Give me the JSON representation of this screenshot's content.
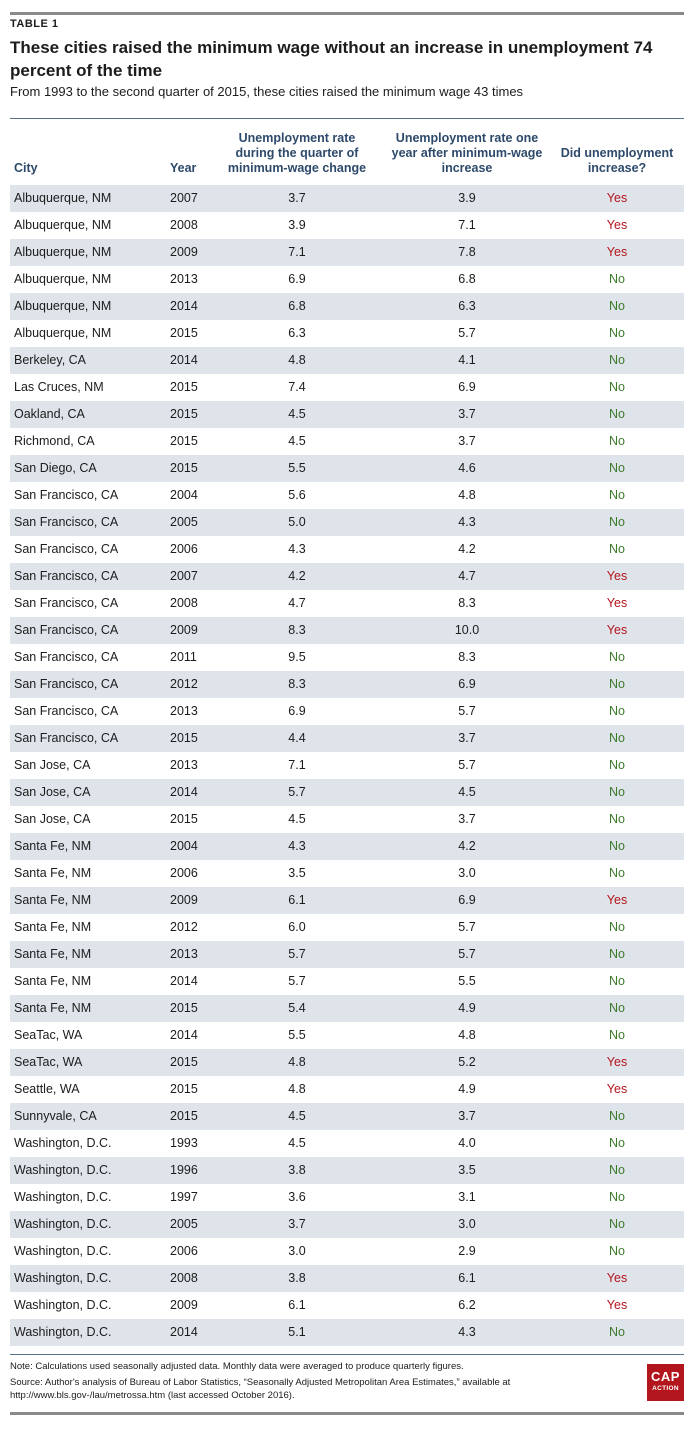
{
  "table_label": "TABLE 1",
  "title": "These cities raised the minimum wage without an increase in unemployment 74 percent of the time",
  "subtitle": "From 1993 to the second quarter of 2015, these cities raised the minimum wage 43 times",
  "headers": {
    "city": "City",
    "year": "Year",
    "during": "Unemployment rate during the quarter of minimum-wage change",
    "after": "Unemployment rate one year after minimum-wage increase",
    "did": "Did unemployment increase?"
  },
  "colors": {
    "yes": "#b3151c",
    "no": "#3c7a2c",
    "header_text": "#2e4a6b",
    "row_shade": "#dfe4ea"
  },
  "rows": [
    [
      "Albuquerque, NM",
      "2007",
      "3.7",
      "3.9",
      "Yes"
    ],
    [
      "Albuquerque, NM",
      "2008",
      "3.9",
      "7.1",
      "Yes"
    ],
    [
      "Albuquerque, NM",
      "2009",
      "7.1",
      "7.8",
      "Yes"
    ],
    [
      "Albuquerque, NM",
      "2013",
      "6.9",
      "6.8",
      "No"
    ],
    [
      "Albuquerque, NM",
      "2014",
      "6.8",
      "6.3",
      "No"
    ],
    [
      "Albuquerque, NM",
      "2015",
      "6.3",
      "5.7",
      "No"
    ],
    [
      "Berkeley, CA",
      "2014",
      "4.8",
      "4.1",
      "No"
    ],
    [
      "Las Cruces, NM",
      "2015",
      "7.4",
      "6.9",
      "No"
    ],
    [
      "Oakland, CA",
      "2015",
      "4.5",
      "3.7",
      "No"
    ],
    [
      "Richmond, CA",
      "2015",
      "4.5",
      "3.7",
      "No"
    ],
    [
      "San Diego, CA",
      "2015",
      "5.5",
      "4.6",
      "No"
    ],
    [
      "San Francisco, CA",
      "2004",
      "5.6",
      "4.8",
      "No"
    ],
    [
      "San Francisco, CA",
      "2005",
      "5.0",
      "4.3",
      "No"
    ],
    [
      "San Francisco, CA",
      "2006",
      "4.3",
      "4.2",
      "No"
    ],
    [
      "San Francisco, CA",
      "2007",
      "4.2",
      "4.7",
      "Yes"
    ],
    [
      "San Francisco, CA",
      "2008",
      "4.7",
      "8.3",
      "Yes"
    ],
    [
      "San Francisco, CA",
      "2009",
      "8.3",
      "10.0",
      "Yes"
    ],
    [
      "San Francisco, CA",
      "2011",
      "9.5",
      "8.3",
      "No"
    ],
    [
      "San Francisco, CA",
      "2012",
      "8.3",
      "6.9",
      "No"
    ],
    [
      "San Francisco, CA",
      "2013",
      "6.9",
      "5.7",
      "No"
    ],
    [
      "San Francisco, CA",
      "2015",
      "4.4",
      "3.7",
      "No"
    ],
    [
      "San Jose, CA",
      "2013",
      "7.1",
      "5.7",
      "No"
    ],
    [
      "San Jose, CA",
      "2014",
      "5.7",
      "4.5",
      "No"
    ],
    [
      "San Jose, CA",
      "2015",
      "4.5",
      "3.7",
      "No"
    ],
    [
      "Santa Fe, NM",
      "2004",
      "4.3",
      "4.2",
      "No"
    ],
    [
      "Santa Fe, NM",
      "2006",
      "3.5",
      "3.0",
      "No"
    ],
    [
      "Santa Fe, NM",
      "2009",
      "6.1",
      "6.9",
      "Yes"
    ],
    [
      "Santa Fe, NM",
      "2012",
      "6.0",
      "5.7",
      "No"
    ],
    [
      "Santa Fe, NM",
      "2013",
      "5.7",
      "5.7",
      "No"
    ],
    [
      "Santa Fe, NM",
      "2014",
      "5.7",
      "5.5",
      "No"
    ],
    [
      "Santa Fe, NM",
      "2015",
      "5.4",
      "4.9",
      "No"
    ],
    [
      "SeaTac, WA",
      "2014",
      "5.5",
      "4.8",
      "No"
    ],
    [
      "SeaTac, WA",
      "2015",
      "4.8",
      "5.2",
      "Yes"
    ],
    [
      "Seattle, WA",
      "2015",
      "4.8",
      "4.9",
      "Yes"
    ],
    [
      "Sunnyvale, CA",
      "2015",
      "4.5",
      "3.7",
      "No"
    ],
    [
      "Washington, D.C.",
      "1993",
      "4.5",
      "4.0",
      "No"
    ],
    [
      "Washington, D.C.",
      "1996",
      "3.8",
      "3.5",
      "No"
    ],
    [
      "Washington, D.C.",
      "1997",
      "3.6",
      "3.1",
      "No"
    ],
    [
      "Washington, D.C.",
      "2005",
      "3.7",
      "3.0",
      "No"
    ],
    [
      "Washington, D.C.",
      "2006",
      "3.0",
      "2.9",
      "No"
    ],
    [
      "Washington, D.C.",
      "2008",
      "3.8",
      "6.1",
      "Yes"
    ],
    [
      "Washington, D.C.",
      "2009",
      "6.1",
      "6.2",
      "Yes"
    ],
    [
      "Washington, D.C.",
      "2014",
      "5.1",
      "4.3",
      "No"
    ]
  ],
  "note": "Note: Calculations used seasonally adjusted data. Monthly data were averaged to produce quarterly figures.",
  "source": "Source: Author's analysis of Bureau of Labor Statistics, “Seasonally Adjusted Metropolitan Area Estimates,” available at http://www.bls.gov-/lau/metrossa.htm (last accessed October 2016).",
  "logo": {
    "main": "CAP",
    "sub": "ACTION"
  }
}
